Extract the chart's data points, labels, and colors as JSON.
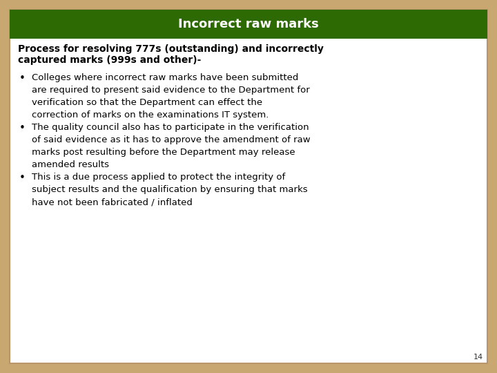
{
  "title": "Incorrect raw marks",
  "title_bg_color": "#2d6a04",
  "title_text_color": "#ffffff",
  "slide_bg_color": "#ffffff",
  "border_color": "#c8a870",
  "bold_heading_line1": "Process for resolving 777s (outstanding) and incorrectly",
  "bold_heading_line2": "captured marks (999s and other)-",
  "bullet_points": [
    "Colleges where incorrect raw marks have been submitted\nare required to present said evidence to the Department for\nverification so that the Department can effect the\ncorrection of marks on the examinations IT system.",
    "The quality council also has to participate in the verification\nof said evidence as it has to approve the amendment of raw\nmarks post resulting before the Department may release\namended results",
    "This is a due process applied to protect the integrity of\nsubject results and the qualification by ensuring that marks\nhave not been fabricated / inflated"
  ],
  "page_number": "14",
  "title_fontsize": 13,
  "heading_fontsize": 10,
  "body_fontsize": 9.5,
  "page_num_fontsize": 8
}
